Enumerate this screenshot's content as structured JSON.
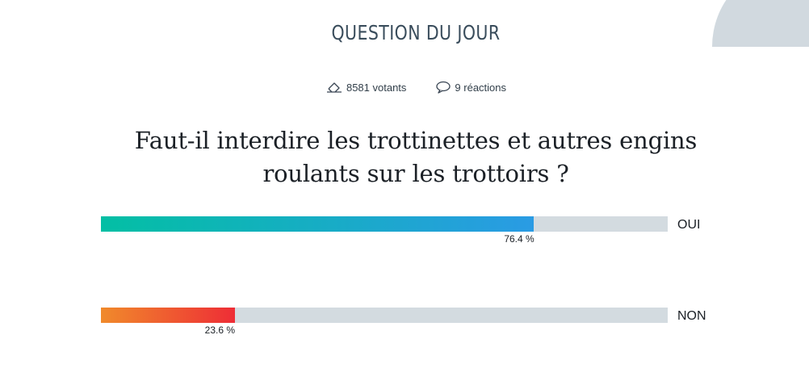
{
  "header": {
    "title": "QUESTION DU JOUR"
  },
  "stats": {
    "voters_label": "8581 votants",
    "voters_icon": "ballot-icon",
    "reactions_label": "9 réactions",
    "reactions_icon": "speech-bubble-icon"
  },
  "question": {
    "line1": "Faut-il interdire les trottinettes et autres engins",
    "line2": "roulants sur les trottoirs ?"
  },
  "options": [
    {
      "label": "OUI",
      "percent": 76.4,
      "percent_label": "76.4 %",
      "color_start": "#03bfa4",
      "color_end": "#2a9be4"
    },
    {
      "label": "NON",
      "percent": 23.6,
      "percent_label": "23.6 %",
      "color_start": "#f08a2b",
      "color_end": "#ee2d36"
    }
  ],
  "colors": {
    "track": "#d3dbe0",
    "title": "#3a4d5c",
    "decoration": "#d1d9df"
  }
}
